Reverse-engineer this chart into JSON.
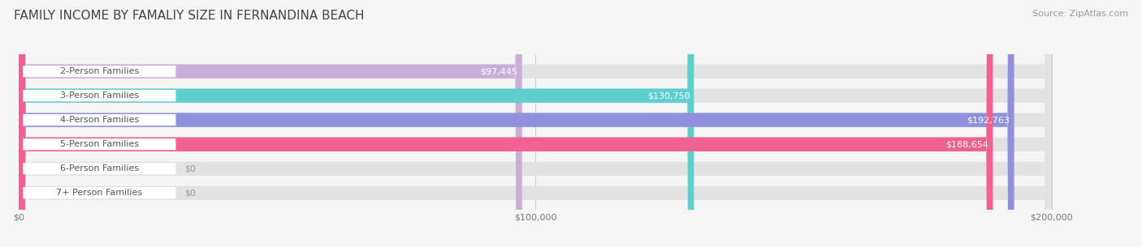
{
  "title": "FAMILY INCOME BY FAMALIY SIZE IN FERNANDINA BEACH",
  "source": "Source: ZipAtlas.com",
  "categories": [
    "2-Person Families",
    "3-Person Families",
    "4-Person Families",
    "5-Person Families",
    "6-Person Families",
    "7+ Person Families"
  ],
  "values": [
    97445,
    130750,
    192763,
    188654,
    0,
    0
  ],
  "bar_colors": [
    "#c9afd8",
    "#5ecfcf",
    "#9090dd",
    "#f06090",
    "#f5c89a",
    "#f0a8a8"
  ],
  "max_value": 200000,
  "xtick_labels": [
    "$0",
    "$100,000",
    "$200,000"
  ],
  "xtick_values": [
    0,
    100000,
    200000
  ],
  "bg_color": "#f5f5f5",
  "bar_bg_color": "#e2e2e2",
  "title_fontsize": 11,
  "source_fontsize": 8,
  "tick_fontsize": 8,
  "label_fontsize": 8,
  "value_fontsize": 8,
  "bar_height": 0.58
}
